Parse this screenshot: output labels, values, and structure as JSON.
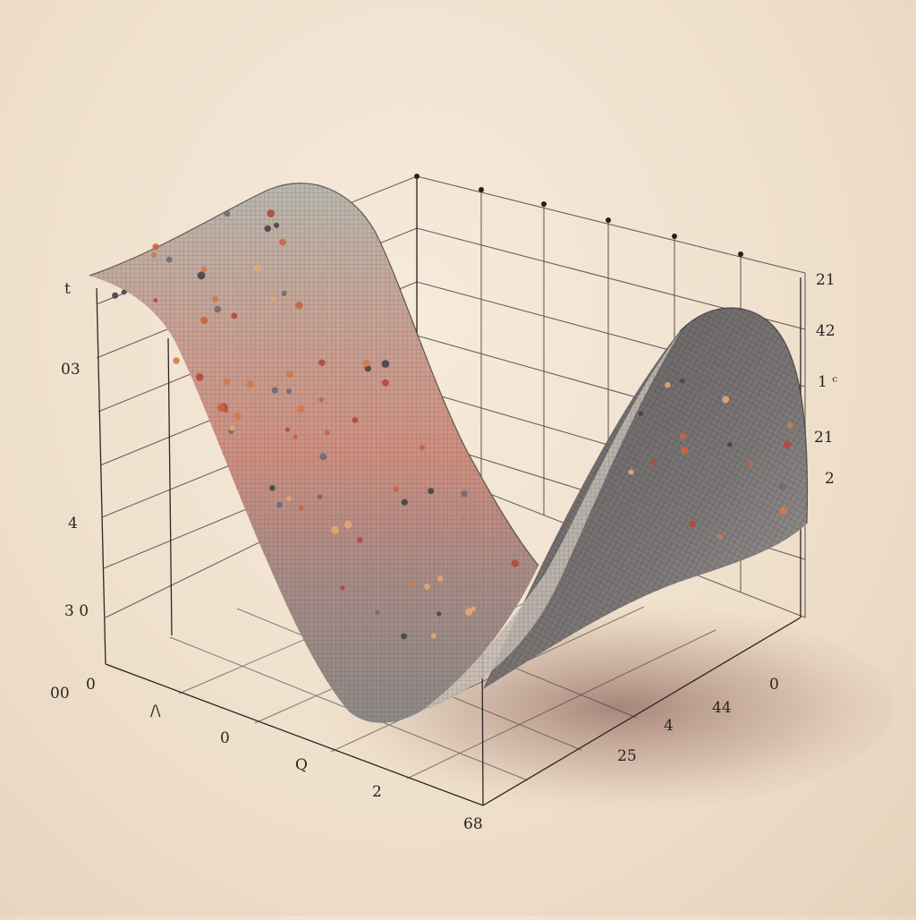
{
  "chart_data": {
    "type": "3d-surface-scatter",
    "title": "",
    "xlabel": "",
    "ylabel": "",
    "zlabel": "",
    "grid": true,
    "legend": "none",
    "colors": {
      "surface_high": "#b9b7ae",
      "surface_mid": "#cf8f80",
      "surface_low": "#8d8a87",
      "surface_back": "#5e5b5c",
      "mesh": "#3b3638",
      "grid_line": "#3a3330",
      "point_palette": [
        "#c8643f",
        "#b04a3a",
        "#454449",
        "#d07a4a",
        "#6d6a78",
        "#e2a870"
      ]
    },
    "left_axis_tick_labels": [
      "t",
      "03",
      "4",
      "3 0"
    ],
    "right_axis_tick_labels": [
      "21",
      "42",
      "1 ᶜ",
      "21",
      "2"
    ],
    "bottom_left_tick_labels": [
      "00",
      "0",
      "/\\",
      "0",
      "Q",
      "2"
    ],
    "bottom_right_tick_labels": [
      "68",
      "25",
      "4",
      "44",
      "0"
    ],
    "surface": {
      "shape": "wave valley",
      "profile_x": [
        0,
        0.15,
        0.3,
        0.45,
        0.6,
        0.75,
        0.9,
        1.0
      ],
      "profile_height": [
        0.95,
        0.9,
        0.62,
        0.22,
        0.03,
        0.18,
        0.62,
        0.72
      ]
    },
    "scatter_count": 90
  }
}
